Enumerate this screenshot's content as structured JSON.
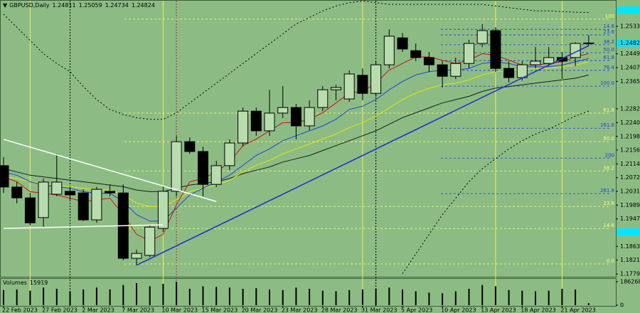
{
  "chart_data": {
    "type": "candlestick",
    "title": "GBPUSD,Daily",
    "categories": [
      "22 Feb 2023",
      null,
      null,
      "27 Feb 2023",
      null,
      null,
      "2 Mar 2023",
      null,
      null,
      "7 Mar 2023",
      null,
      null,
      "10 Mar 2023",
      null,
      null,
      "15 Mar 2023",
      null,
      null,
      "20 Mar 2023",
      null,
      null,
      "23 Mar 2023",
      null,
      null,
      "28 Mar 2023",
      null,
      null,
      "31 Mar 2023",
      null,
      null,
      "5 Apr 2023",
      null,
      null,
      "10 Apr 2023",
      null,
      null,
      "13 Apr 2023",
      null,
      null,
      "18 Apr 2023",
      null,
      null,
      "21 Apr 2023",
      null,
      null
    ],
    "open": [
      1.2109,
      1.2044,
      1.2011,
      1.1951,
      1.2022,
      1.2031,
      1.2026,
      1.1944,
      1.2031,
      1.2026,
      1.1827,
      1.1836,
      1.1918,
      1.2031,
      1.2182,
      1.2152,
      1.2052,
      1.2109,
      1.2178,
      1.2275,
      1.2215,
      1.2269,
      1.2286,
      1.223,
      1.2286,
      1.234,
      1.2312,
      1.2384,
      1.2329,
      1.2416,
      1.2498,
      1.2459,
      1.2438,
      1.2416,
      1.2381,
      1.242,
      1.2481,
      1.252,
      1.2405,
      1.2377,
      1.2416,
      1.242,
      1.2438,
      1.2438,
      1.24811
    ],
    "high": [
      1.2135,
      1.2059,
      1.2026,
      1.207,
      1.2145,
      1.2044,
      1.2037,
      1.2044,
      1.2052,
      1.2052,
      1.1853,
      1.1929,
      1.2048,
      1.22,
      1.2195,
      1.2167,
      1.2124,
      1.2189,
      1.2286,
      1.2286,
      1.234,
      1.2351,
      1.2297,
      1.2308,
      1.2351,
      1.2355,
      1.2399,
      1.2405,
      1.2427,
      1.2524,
      1.2513,
      1.2481,
      1.2455,
      1.2427,
      1.2438,
      1.2492,
      1.254,
      1.253,
      1.2427,
      1.2427,
      1.247,
      1.247,
      1.2455,
      1.2485,
      1.25059
    ],
    "low": [
      1.2026,
      1.1994,
      1.1927,
      1.1922,
      1.2016,
      1.2005,
      1.194,
      1.1935,
      1.2016,
      1.1821,
      1.1806,
      1.1831,
      1.1907,
      1.2016,
      1.2145,
      1.2016,
      1.2044,
      1.2096,
      1.2167,
      1.22,
      1.22,
      1.2254,
      1.2189,
      1.2217,
      1.2275,
      1.2308,
      1.2303,
      1.2308,
      1.2319,
      1.2405,
      1.2455,
      1.2427,
      1.2394,
      1.2347,
      1.2373,
      1.2405,
      1.247,
      1.2394,
      1.2362,
      1.2368,
      1.2405,
      1.2412,
      1.2373,
      1.2412,
      1.24734
    ],
    "close": [
      1.2044,
      1.2011,
      1.1935,
      1.2059,
      1.2059,
      1.202,
      1.1944,
      1.2037,
      1.2026,
      1.1827,
      1.1842,
      1.1922,
      1.2031,
      1.2182,
      1.2152,
      1.2052,
      1.2109,
      1.2178,
      1.2275,
      1.2215,
      1.2269,
      1.2286,
      1.223,
      1.2286,
      1.234,
      1.2347,
      1.2388,
      1.2329,
      1.2416,
      1.2503,
      1.2464,
      1.2438,
      1.2416,
      1.2381,
      1.242,
      1.2481,
      1.252,
      1.2405,
      1.2377,
      1.2416,
      1.2427,
      1.2438,
      1.2427,
      1.2481,
      1.24824
    ],
    "up_color": "#b9dcae",
    "down_color": "#000000",
    "ylim": [
      1.1771,
      1.2611
    ],
    "yticks": [
      {
        "value": 1.2533,
        "label": "1.25330"
      },
      1.24495,
      1.24075,
      1.23655,
      {
        "value": 1.2282,
        "label": "1.22820"
      },
      {
        "value": 1.224,
        "label": "1.22400"
      },
      {
        "value": 1.2198,
        "label": "1.21980"
      },
      1.21565,
      1.21145,
      1.20725,
      {
        "value": 1.2031,
        "label": "1.20310"
      },
      {
        "value": 1.1989,
        "label": "1.19890"
      },
      {
        "value": 1.1947,
        "label": "1.19470"
      },
      1.18635,
      1.18215,
      1.17795
    ],
    "lines": [
      {
        "color": "#000000",
        "dash": "2,3",
        "values": [
          1.257,
          1.253,
          1.249,
          1.245,
          1.242,
          1.2395,
          1.235,
          1.231,
          1.228,
          1.2265,
          1.2255,
          1.225,
          1.225,
          1.227,
          1.23,
          1.233,
          1.236,
          1.239,
          1.242,
          1.245,
          1.248,
          1.251,
          1.254,
          1.256,
          1.258,
          1.2595,
          1.2605,
          1.261,
          1.2605,
          1.26,
          1.26,
          1.26,
          1.26,
          1.26,
          1.26,
          1.26,
          1.26,
          1.2595,
          1.259,
          1.2585,
          1.258,
          1.258,
          1.2578,
          1.2576,
          1.2575
        ]
      },
      {
        "color": "#000000",
        "dash": "2,3",
        "values": [
          null,
          null,
          null,
          null,
          null,
          null,
          null,
          null,
          null,
          null,
          null,
          null,
          null,
          null,
          null,
          null,
          null,
          null,
          null,
          null,
          null,
          null,
          null,
          null,
          null,
          null,
          null,
          null,
          null,
          null,
          1.178,
          1.184,
          1.19,
          1.196,
          1.201,
          1.206,
          1.21,
          1.213,
          1.216,
          1.2185,
          1.2205,
          1.222,
          1.224,
          1.226,
          1.2275
        ]
      },
      {
        "color": "#1a1a1a",
        "values": [
          1.21,
          1.209,
          1.208,
          1.2075,
          1.207,
          1.2065,
          1.206,
          1.2055,
          1.205,
          1.2045,
          1.2035,
          1.203,
          1.203,
          1.204,
          1.205,
          1.2055,
          1.206,
          1.207,
          1.2085,
          1.2095,
          1.2105,
          1.212,
          1.213,
          1.214,
          1.2155,
          1.217,
          1.2185,
          1.22,
          1.2215,
          1.2235,
          1.2255,
          1.227,
          1.2285,
          1.23,
          1.231,
          1.232,
          1.2335,
          1.2345,
          1.235,
          1.2355,
          1.236,
          1.2365,
          1.237,
          1.2375,
          1.2385
        ]
      },
      {
        "color": "#e6e600",
        "values": [
          1.2075,
          1.207,
          1.206,
          1.2055,
          1.205,
          1.2045,
          1.204,
          1.2035,
          1.2035,
          1.202,
          1.1995,
          1.1985,
          1.1985,
          1.2005,
          1.203,
          1.204,
          1.205,
          1.2065,
          1.209,
          1.211,
          1.2125,
          1.2145,
          1.216,
          1.2175,
          1.219,
          1.2205,
          1.2225,
          1.224,
          1.226,
          1.2285,
          1.231,
          1.233,
          1.2345,
          1.2355,
          1.236,
          1.237,
          1.2385,
          1.2395,
          1.24,
          1.24,
          1.2405,
          1.2405,
          1.241,
          1.2415,
          1.2425
        ]
      },
      {
        "color": "#2040e0",
        "values": [
          1.209,
          1.208,
          1.206,
          1.205,
          1.2045,
          1.204,
          1.203,
          1.2025,
          1.2025,
          1.2,
          1.196,
          1.194,
          1.194,
          1.198,
          1.202,
          1.204,
          1.206,
          1.208,
          1.211,
          1.214,
          1.216,
          1.2185,
          1.22,
          1.2215,
          1.223,
          1.225,
          1.228,
          1.229,
          1.231,
          1.234,
          1.2365,
          1.2385,
          1.2395,
          1.24,
          1.24,
          1.2405,
          1.242,
          1.2425,
          1.242,
          1.241,
          1.241,
          1.241,
          1.2415,
          1.2425,
          1.2435
        ]
      },
      {
        "color": "#d01010",
        "values": [
          1.2075,
          1.206,
          1.203,
          1.2025,
          1.202,
          1.201,
          1.2,
          1.2005,
          1.201,
          1.196,
          1.19,
          1.188,
          1.19,
          1.199,
          1.206,
          1.207,
          1.209,
          1.212,
          1.217,
          1.219,
          1.2215,
          1.224,
          1.224,
          1.225,
          1.227,
          1.23,
          1.233,
          1.2335,
          1.236,
          1.24,
          1.242,
          1.244,
          1.244,
          1.243,
          1.242,
          1.243,
          1.245,
          1.2445,
          1.243,
          1.2415,
          1.2415,
          1.242,
          1.2425,
          1.244,
          1.245
        ]
      }
    ],
    "trendlines": [
      {
        "color": "#ffffff",
        "x": [
          0,
          16
        ],
        "y": [
          1.2189,
          1.2
        ]
      },
      {
        "color": "#ffffff",
        "x": [
          0,
          12
        ],
        "y": [
          1.1918,
          1.1929
        ]
      },
      {
        "color": "#1e2fd0",
        "x": [
          10,
          44
        ],
        "y": [
          1.1806,
          1.2474
        ]
      }
    ],
    "fib_sets": [
      {
        "color": "#ffff66",
        "levels": [
          {
            "value": 1.181,
            "label": "0.0"
          },
          {
            "value": 1.1918,
            "label": "14.6"
          },
          {
            "value": 1.1985,
            "label": "23.6"
          },
          {
            "value": 1.2093,
            "label": "38.2"
          },
          {
            "value": 1.2182,
            "label": "50.0"
          },
          {
            "value": 1.2269,
            "label": "61.8"
          },
          {
            "value": 1.2555,
            "label": "100"
          }
        ]
      },
      {
        "color": "#1e3ce0",
        "levels": [
          {
            "value": 1.2524,
            "label": "14.6"
          },
          {
            "value": 1.2507,
            "label": "23.6"
          },
          {
            "value": 1.2477,
            "label": "38.2"
          },
          {
            "value": 1.2453,
            "label": "50.0"
          },
          {
            "value": 1.2429,
            "label": "61.8"
          },
          {
            "value": 1.2399,
            "label": "76.4"
          },
          {
            "value": 1.2351,
            "label": "100.0"
          },
          {
            "value": 1.2223,
            "label": "161.8"
          },
          {
            "value": 1.2132,
            "label": "200"
          },
          {
            "value": 1.2024,
            "label": "261.8"
          }
        ]
      }
    ],
    "price_box_color": "#00e5ff",
    "volume": {
      "title": "Volumes",
      "color": "#000000",
      "values": [
        120000,
        125000,
        115000,
        140000,
        130000,
        110000,
        125000,
        140000,
        125000,
        160000,
        175000,
        150000,
        170000,
        185000,
        130000,
        150000,
        145000,
        140000,
        130000,
        135000,
        125000,
        120000,
        140000,
        130000,
        115000,
        110000,
        120000,
        125000,
        130000,
        140000,
        125000,
        110000,
        100000,
        95000,
        110000,
        130000,
        160000,
        150000,
        120000,
        115000,
        110000,
        115000,
        130000,
        125000,
        15919
      ],
      "ylim": [
        0,
        186268
      ],
      "yticks": [
        186268,
        0
      ]
    }
  }
}
